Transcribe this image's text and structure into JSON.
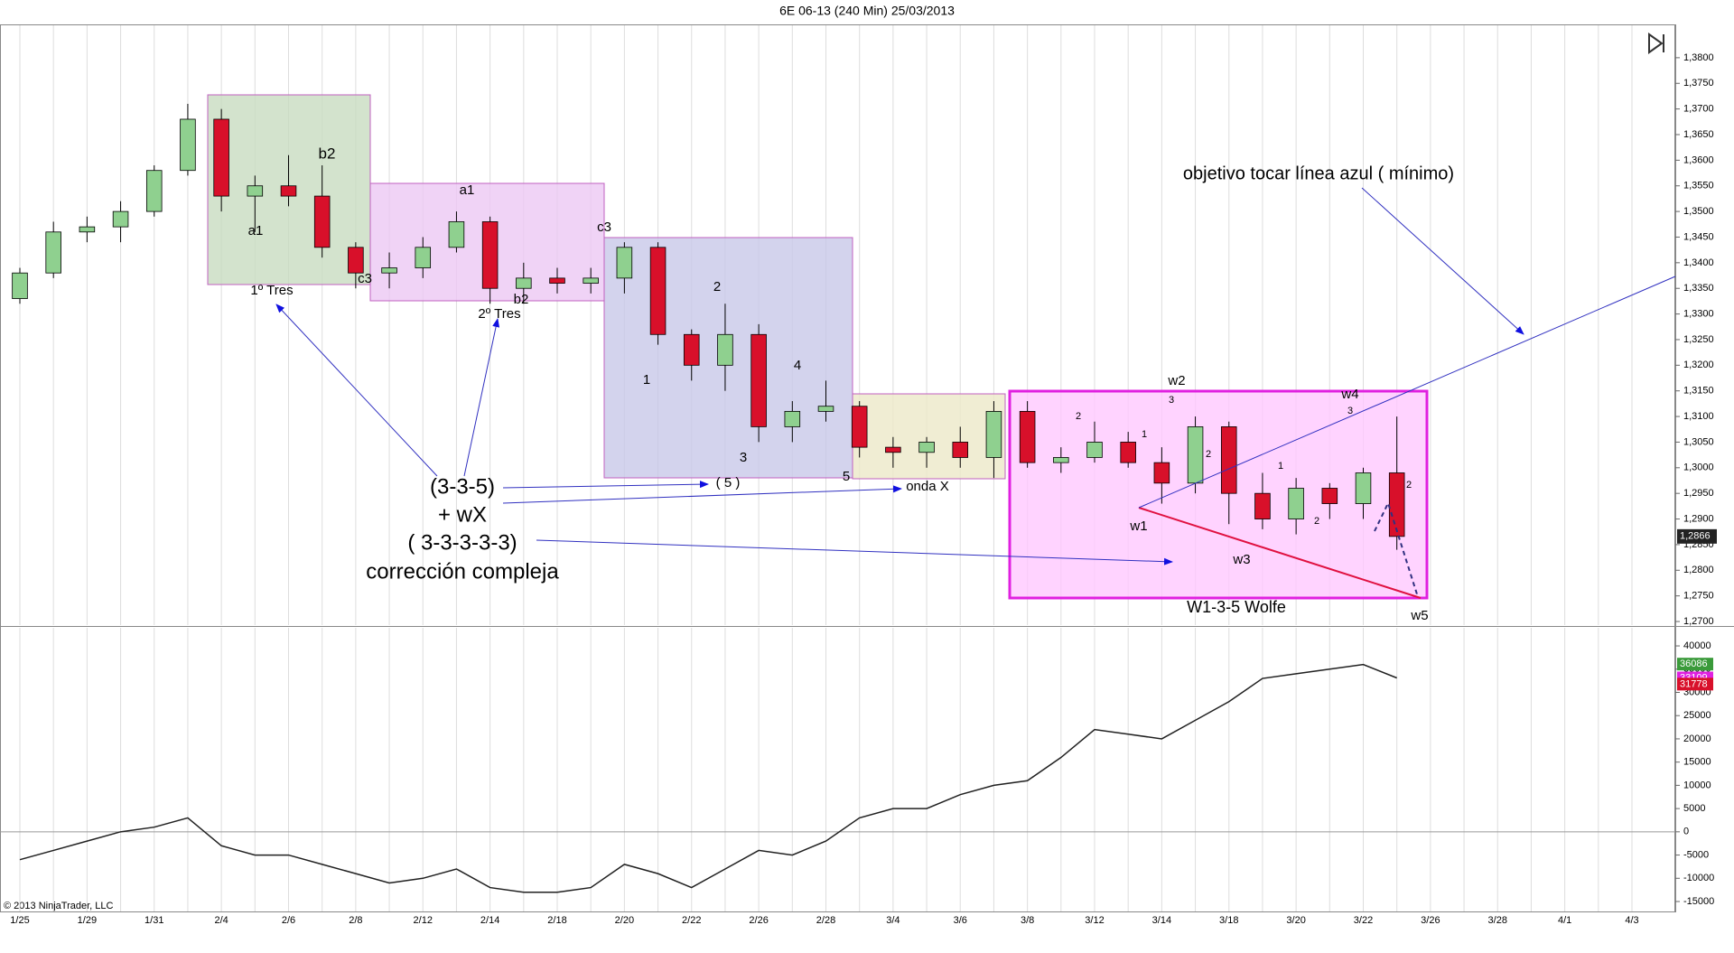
{
  "chart_data": [
    {
      "type": "candlestick",
      "title": "6E 06-13 (240 Min)  25/03/2013",
      "x": [
        "1/25",
        null,
        "1/29",
        null,
        "1/31",
        null,
        "2/4",
        null,
        "2/6",
        null,
        "2/8",
        null,
        "2/12",
        null,
        "2/14",
        null,
        "2/18",
        null,
        "2/20",
        null,
        "2/22",
        null,
        "2/26",
        null,
        "2/28",
        null,
        "3/4",
        null,
        "3/6",
        null,
        "3/8",
        null,
        "3/12",
        null,
        "3/14",
        null,
        "3/18",
        null,
        "3/20",
        null,
        "3/22",
        null,
        "3/26",
        null,
        "3/28",
        null,
        "4/1",
        null,
        "4/3"
      ],
      "open": [
        1.333,
        1.338,
        1.346,
        1.347,
        1.35,
        1.358,
        1.368,
        1.353,
        1.355,
        1.353,
        1.343,
        1.338,
        1.339,
        1.343,
        1.348,
        1.335,
        1.337,
        1.336,
        1.337,
        1.343,
        1.326,
        1.32,
        1.326,
        1.308,
        1.311,
        1.312,
        1.304,
        1.303,
        1.305,
        1.302,
        1.311,
        1.301,
        1.302,
        1.305,
        1.301,
        1.297,
        1.308,
        1.295,
        1.29,
        1.296,
        1.293,
        1.299,
        null,
        null,
        null,
        null,
        null,
        null,
        null
      ],
      "high": [
        1.339,
        1.348,
        1.349,
        1.352,
        1.359,
        1.371,
        1.37,
        1.357,
        1.361,
        1.359,
        1.344,
        1.342,
        1.345,
        1.35,
        1.349,
        1.34,
        1.339,
        1.339,
        1.344,
        1.344,
        1.327,
        1.332,
        1.328,
        1.313,
        1.317,
        1.313,
        1.306,
        1.306,
        1.308,
        1.313,
        1.313,
        1.304,
        1.309,
        1.307,
        1.304,
        1.31,
        1.309,
        1.299,
        1.298,
        1.297,
        1.3,
        1.31,
        null,
        null,
        null,
        null,
        null,
        null,
        null
      ],
      "low": [
        1.332,
        1.337,
        1.344,
        1.344,
        1.349,
        1.357,
        1.35,
        1.346,
        1.351,
        1.341,
        1.335,
        1.335,
        1.337,
        1.342,
        1.332,
        1.332,
        1.334,
        1.334,
        1.334,
        1.324,
        1.317,
        1.315,
        1.305,
        1.305,
        1.309,
        1.302,
        1.3,
        1.3,
        1.3,
        1.298,
        1.3,
        1.299,
        1.301,
        1.3,
        1.293,
        1.295,
        1.289,
        1.288,
        1.287,
        1.29,
        1.29,
        1.284,
        null,
        null,
        null,
        null,
        null,
        null,
        null
      ],
      "close": [
        1.338,
        1.346,
        1.347,
        1.35,
        1.358,
        1.368,
        1.353,
        1.355,
        1.353,
        1.343,
        1.338,
        1.339,
        1.343,
        1.348,
        1.335,
        1.337,
        1.336,
        1.337,
        1.343,
        1.326,
        1.32,
        1.326,
        1.308,
        1.311,
        1.312,
        1.304,
        1.303,
        1.305,
        1.302,
        1.311,
        1.301,
        1.302,
        1.305,
        1.301,
        1.297,
        1.308,
        1.295,
        1.29,
        1.296,
        1.293,
        1.299,
        1.2866,
        null,
        null,
        null,
        null,
        null,
        null,
        null
      ],
      "up_color": "#8fd08f",
      "down_color": "#d8102a",
      "ylim": [
        1.2693,
        1.3865
      ],
      "yticks": [
        {
          "value": 1.27,
          "label": "1,2700"
        },
        {
          "value": 1.275,
          "label": "1,2750"
        },
        {
          "value": 1.28,
          "label": "1,2800"
        },
        {
          "value": 1.285,
          "label": "1,2850"
        },
        {
          "value": 1.29,
          "label": "1,2900"
        },
        {
          "value": 1.295,
          "label": "1,2950"
        },
        {
          "value": 1.3,
          "label": "1,3000"
        },
        {
          "value": 1.305,
          "label": "1,3050"
        },
        {
          "value": 1.31,
          "label": "1,3100"
        },
        {
          "value": 1.315,
          "label": "1,3150"
        },
        {
          "value": 1.32,
          "label": "1,3200"
        },
        {
          "value": 1.325,
          "label": "1,3250"
        },
        {
          "value": 1.33,
          "label": "1,3300"
        },
        {
          "value": 1.335,
          "label": "1,3350"
        },
        {
          "value": 1.34,
          "label": "1,3400"
        },
        {
          "value": 1.345,
          "label": "1,3450"
        },
        {
          "value": 1.35,
          "label": "1,3500"
        },
        {
          "value": 1.355,
          "label": "1,3550"
        },
        {
          "value": 1.36,
          "label": "1,3600"
        },
        {
          "value": 1.365,
          "label": "1,3650"
        },
        {
          "value": 1.37,
          "label": "1,3700"
        },
        {
          "value": 1.375,
          "label": "1,3750"
        },
        {
          "value": 1.38,
          "label": "1,3800"
        }
      ],
      "last_price": {
        "value": 1.2866,
        "label": "1,2866"
      },
      "annotations": [
        "a1",
        "b2",
        "1º Tres",
        "c3",
        "a1",
        "b2",
        "2º Tres",
        "c3",
        "2",
        "1",
        "4",
        "3",
        "5",
        "( 5 )",
        "onda X",
        "(3-3-5)",
        "+ wX",
        "( 3-3-3-3-3)",
        "corrección compleja",
        "objetivo tocar línea azul ( mínimo)",
        "w1",
        "w2",
        "w3",
        "w4",
        "w5",
        "W1-3-5 Wolfe",
        "3",
        "1",
        "2",
        "2",
        "1",
        "2",
        "3",
        "2"
      ]
    },
    {
      "type": "line",
      "color": "#202020",
      "copyright": "© 2013 NinjaTrader, LLC",
      "x": [
        "1/25",
        null,
        "1/29",
        null,
        "1/31",
        null,
        "2/4",
        null,
        "2/6",
        null,
        "2/8",
        null,
        "2/12",
        null,
        "2/14",
        null,
        "2/18",
        null,
        "2/20",
        null,
        "2/22",
        null,
        "2/26",
        null,
        "2/28",
        null,
        "3/4",
        null,
        "3/6",
        null,
        "3/8",
        null,
        "3/12",
        null,
        "3/14",
        null,
        "3/18",
        null,
        "3/20",
        null,
        "3/22",
        null,
        "3/26",
        null,
        "3/28",
        null,
        "4/1",
        null,
        "4/3"
      ],
      "values": [
        -6000,
        -4000,
        -2000,
        0,
        1000,
        3000,
        -3000,
        -5000,
        -5000,
        -7000,
        -9000,
        -11000,
        -10000,
        -8000,
        -12000,
        -13000,
        -13000,
        -12000,
        -7000,
        -9000,
        -12000,
        -8000,
        -4000,
        -5000,
        -2000,
        3000,
        5000,
        5000,
        8000,
        10000,
        11000,
        16000,
        22000,
        21000,
        20000,
        24000,
        28000,
        33000,
        34000,
        35000,
        36000,
        33109,
        null,
        null,
        null,
        null,
        null,
        null,
        null
      ],
      "ylim": [
        -17330,
        44090
      ],
      "yticks": [
        -15000,
        -10000,
        -5000,
        0,
        5000,
        10000,
        15000,
        20000,
        25000,
        30000,
        35000,
        40000
      ],
      "badges": [
        {
          "value": 36086,
          "color": "#3a9a3a"
        },
        {
          "value": 33109,
          "color": "#e020e0"
        },
        {
          "value": 31778,
          "color": "#d8102a"
        }
      ]
    }
  ]
}
